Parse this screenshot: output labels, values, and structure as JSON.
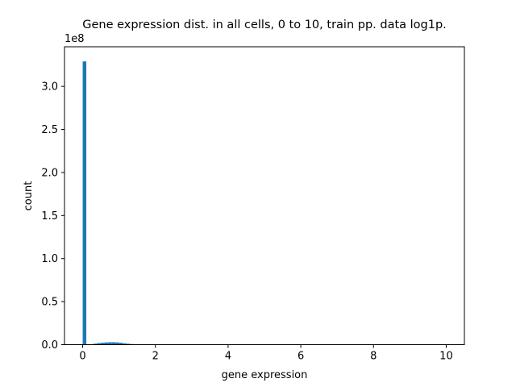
{
  "chart_data": {
    "type": "bar",
    "title": "Gene expression dist. in all cells, 0 to 10, train pp. data log1p.",
    "xlabel": "gene expression",
    "ylabel": "count",
    "y_offset_label": "1e8",
    "xlim": [
      -0.5,
      10.5
    ],
    "ylim": [
      0,
      3.46
    ],
    "x_ticks": [
      0,
      2,
      4,
      6,
      8,
      10
    ],
    "x_tick_labels": [
      "0",
      "2",
      "4",
      "6",
      "8",
      "10"
    ],
    "y_ticks": [
      0.0,
      0.5,
      1.0,
      1.5,
      2.0,
      2.5,
      3.0
    ],
    "y_tick_labels": [
      "0.0",
      "0.5",
      "1.0",
      "1.5",
      "2.0",
      "2.5",
      "3.0"
    ],
    "bin_width": 0.1,
    "bin_starts": [
      0.0,
      0.1,
      0.2,
      0.3,
      0.4,
      0.5,
      0.6,
      0.7,
      0.8,
      0.9,
      1.0,
      1.1,
      1.2,
      1.3,
      1.4,
      1.5,
      1.6,
      1.7,
      1.8,
      1.9,
      2.0,
      2.1,
      2.2,
      2.3
    ],
    "values": [
      3.29,
      0.0,
      0.005,
      0.012,
      0.018,
      0.022,
      0.026,
      0.028,
      0.028,
      0.026,
      0.022,
      0.016,
      0.011,
      0.007,
      0.004,
      0.002,
      0.001,
      0.0005,
      0.0003,
      0.0002,
      0.0001,
      0.0001,
      5e-05,
      3e-05
    ],
    "bar_color": "#1f77b4",
    "grid": false,
    "legend": "none"
  }
}
